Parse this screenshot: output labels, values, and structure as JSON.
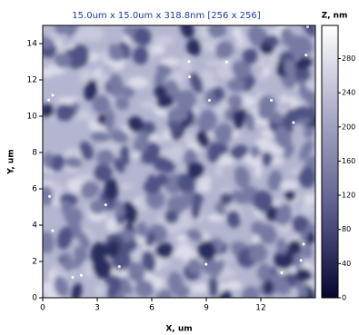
{
  "chart_data": {
    "type": "image",
    "title": "15.0um x 15.0um x 318.8nm [256 x 256]",
    "xlabel": "X, um",
    "ylabel": "Y, um",
    "xlim": [
      0,
      15
    ],
    "ylim": [
      0,
      15
    ],
    "xticks": [
      0,
      3,
      6,
      9,
      12
    ],
    "yticks": [
      0,
      2,
      4,
      6,
      8,
      10,
      12,
      14
    ],
    "colorbar": {
      "label": "Z, nm",
      "lim": [
        0,
        318.8
      ],
      "ticks": [
        0,
        40,
        80,
        120,
        160,
        200,
        240,
        280
      ],
      "colors": [
        "#050530",
        "#5c5f8e",
        "#a9aac6",
        "#ffffff"
      ]
    }
  }
}
